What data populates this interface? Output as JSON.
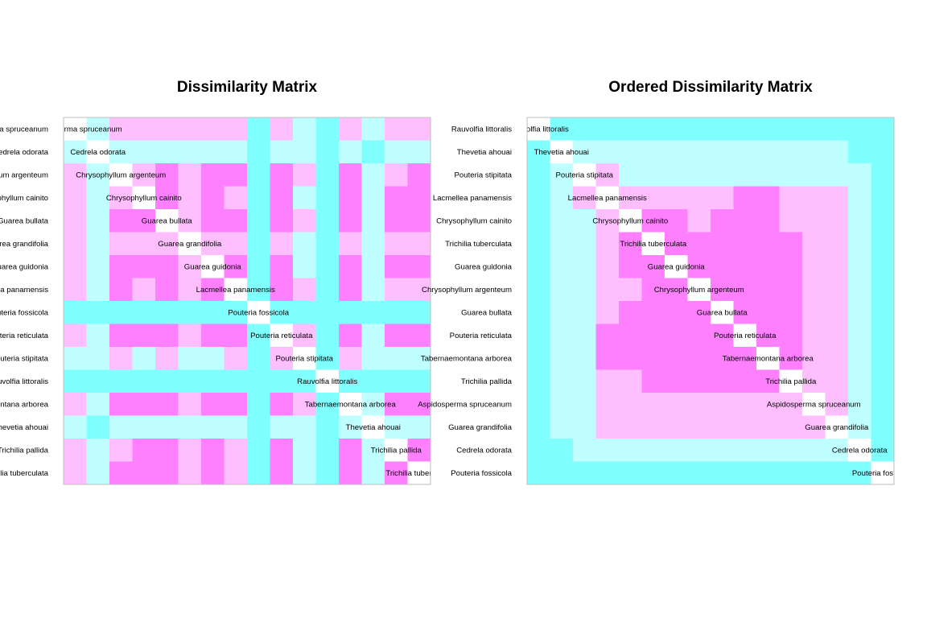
{
  "palette": {
    "levels": [
      "#FFFFFF",
      "#FF80FF",
      "#FFBFFF",
      "#BFFFFF",
      "#80FFFF"
    ],
    "frame": "#BEBEBE"
  },
  "chart_data": [
    {
      "type": "heatmap",
      "title": "Dissimilarity Matrix",
      "labels": [
        "Aspidosperma spruceanum",
        "Cedrela odorata",
        "Chrysophyllum argenteum",
        "Chrysophyllum cainito",
        "Guarea bullata",
        "Guarea grandifolia",
        "Guarea guidonia",
        "Lacmellea panamensis",
        "Pouteria fossicola",
        "Pouteria reticulata",
        "Pouteria stipitata",
        "Rauvolfia littoralis",
        "Tabernaemontana arborea",
        "Thevetia ahouai",
        "Trichilia pallida",
        "Trichilia tuberculata"
      ],
      "matrix": [
        [
          0,
          3,
          2,
          2,
          2,
          2,
          2,
          2,
          4,
          2,
          3,
          4,
          2,
          3,
          2,
          2
        ],
        [
          3,
          0,
          3,
          3,
          3,
          3,
          3,
          3,
          4,
          3,
          3,
          4,
          3,
          4,
          3,
          3
        ],
        [
          2,
          3,
          0,
          2,
          1,
          2,
          1,
          1,
          4,
          1,
          2,
          4,
          1,
          3,
          2,
          1
        ],
        [
          2,
          3,
          2,
          0,
          1,
          2,
          1,
          2,
          4,
          1,
          3,
          4,
          1,
          3,
          1,
          1
        ],
        [
          2,
          3,
          1,
          1,
          0,
          2,
          1,
          1,
          4,
          1,
          2,
          4,
          1,
          3,
          1,
          1
        ],
        [
          2,
          3,
          2,
          2,
          2,
          0,
          2,
          2,
          4,
          2,
          3,
          4,
          2,
          3,
          2,
          2
        ],
        [
          2,
          3,
          1,
          1,
          1,
          2,
          0,
          1,
          4,
          1,
          3,
          4,
          1,
          3,
          1,
          1
        ],
        [
          2,
          3,
          1,
          2,
          1,
          2,
          1,
          0,
          4,
          1,
          2,
          4,
          1,
          3,
          2,
          2
        ],
        [
          4,
          4,
          4,
          4,
          4,
          4,
          4,
          4,
          0,
          4,
          4,
          4,
          4,
          4,
          4,
          4
        ],
        [
          2,
          3,
          1,
          1,
          1,
          2,
          1,
          1,
          4,
          0,
          2,
          4,
          1,
          3,
          1,
          1
        ],
        [
          3,
          3,
          2,
          3,
          2,
          3,
          3,
          2,
          4,
          2,
          0,
          4,
          2,
          3,
          3,
          3
        ],
        [
          4,
          4,
          4,
          4,
          4,
          4,
          4,
          4,
          4,
          4,
          4,
          0,
          4,
          4,
          4,
          4
        ],
        [
          2,
          3,
          1,
          1,
          1,
          2,
          1,
          1,
          4,
          1,
          2,
          4,
          0,
          3,
          1,
          1
        ],
        [
          3,
          4,
          3,
          3,
          3,
          3,
          3,
          3,
          4,
          3,
          3,
          4,
          3,
          0,
          3,
          3
        ],
        [
          2,
          3,
          2,
          1,
          1,
          2,
          1,
          2,
          4,
          1,
          3,
          4,
          1,
          3,
          0,
          1
        ],
        [
          2,
          3,
          1,
          1,
          1,
          2,
          1,
          2,
          4,
          1,
          3,
          4,
          1,
          3,
          1,
          0
        ]
      ]
    },
    {
      "type": "heatmap",
      "title": "Ordered Dissimilarity Matrix",
      "labels": [
        "Rauvolfia littoralis",
        "Thevetia ahouai",
        "Pouteria stipitata",
        "Lacmellea panamensis",
        "Chrysophyllum cainito",
        "Trichilia tuberculata",
        "Guarea guidonia",
        "Chrysophyllum argenteum",
        "Guarea bullata",
        "Pouteria reticulata",
        "Tabernaemontana arborea",
        "Trichilia pallida",
        "Aspidosperma spruceanum",
        "Guarea grandifolia",
        "Cedrela odorata",
        "Pouteria fossicola"
      ],
      "matrix": [
        [
          0,
          4,
          4,
          4,
          4,
          4,
          4,
          4,
          4,
          4,
          4,
          4,
          4,
          4,
          4,
          4
        ],
        [
          4,
          0,
          3,
          3,
          3,
          3,
          3,
          3,
          3,
          3,
          3,
          3,
          3,
          3,
          4,
          4
        ],
        [
          4,
          3,
          0,
          2,
          3,
          3,
          3,
          3,
          3,
          3,
          3,
          3,
          3,
          3,
          3,
          4
        ],
        [
          4,
          3,
          2,
          0,
          2,
          2,
          2,
          2,
          2,
          1,
          1,
          2,
          2,
          2,
          3,
          4
        ],
        [
          4,
          3,
          3,
          2,
          0,
          1,
          1,
          2,
          1,
          1,
          1,
          2,
          2,
          2,
          3,
          4
        ],
        [
          4,
          3,
          3,
          2,
          1,
          0,
          1,
          1,
          1,
          1,
          1,
          1,
          2,
          2,
          3,
          4
        ],
        [
          4,
          3,
          3,
          2,
          1,
          1,
          0,
          1,
          1,
          1,
          1,
          1,
          2,
          2,
          3,
          4
        ],
        [
          4,
          3,
          3,
          2,
          2,
          1,
          1,
          0,
          1,
          1,
          1,
          1,
          2,
          2,
          3,
          4
        ],
        [
          4,
          3,
          3,
          2,
          1,
          1,
          1,
          1,
          0,
          1,
          1,
          1,
          2,
          2,
          3,
          4
        ],
        [
          4,
          3,
          3,
          1,
          1,
          1,
          1,
          1,
          1,
          0,
          1,
          1,
          2,
          2,
          3,
          4
        ],
        [
          4,
          3,
          3,
          1,
          1,
          1,
          1,
          1,
          1,
          1,
          0,
          1,
          2,
          2,
          3,
          4
        ],
        [
          4,
          3,
          3,
          2,
          2,
          1,
          1,
          1,
          1,
          1,
          1,
          0,
          2,
          2,
          3,
          4
        ],
        [
          4,
          3,
          3,
          2,
          2,
          2,
          2,
          2,
          2,
          2,
          2,
          2,
          0,
          2,
          3,
          4
        ],
        [
          4,
          3,
          3,
          2,
          2,
          2,
          2,
          2,
          2,
          2,
          2,
          2,
          2,
          0,
          3,
          4
        ],
        [
          4,
          4,
          3,
          3,
          3,
          3,
          3,
          3,
          3,
          3,
          3,
          3,
          3,
          3,
          0,
          4
        ],
        [
          4,
          4,
          4,
          4,
          4,
          4,
          4,
          4,
          4,
          4,
          4,
          4,
          4,
          4,
          4,
          0
        ]
      ]
    }
  ]
}
